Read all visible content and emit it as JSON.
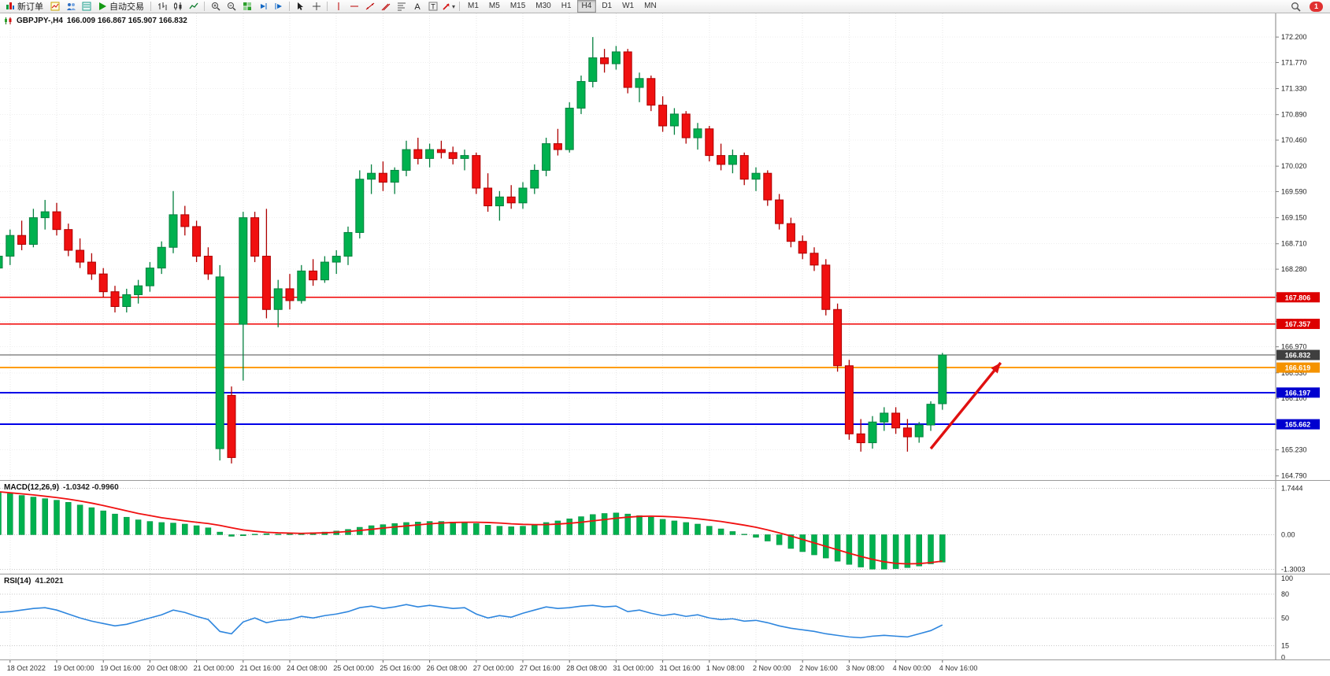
{
  "toolbar": {
    "new_order_label": "新订单",
    "autotrading_label": "自动交易",
    "timeframes": [
      "M1",
      "M5",
      "M15",
      "M30",
      "H1",
      "H4",
      "D1",
      "W1",
      "MN"
    ],
    "selected_timeframe": "H4",
    "notification_count": "1"
  },
  "chart_header": {
    "symbol_timeframe": "GBPJPY-,H4",
    "ohlc": "166.009 166.867 165.907 166.832"
  },
  "hlines": [
    {
      "label": "167.806",
      "price": 167.806,
      "color": "#f00000",
      "label_bg": "#dd0000",
      "width": 1.4
    },
    {
      "label": "167.357",
      "price": 167.357,
      "color": "#f00000",
      "label_bg": "#dd0000",
      "width": 1.4
    },
    {
      "label": "166.832",
      "price": 166.832,
      "color": "#4d4d4d",
      "label_bg": "#3f3f3f",
      "width": 1.2
    },
    {
      "label": "166.619",
      "price": 166.619,
      "color": "#ff9c00",
      "label_bg": "#f59300",
      "width": 2
    },
    {
      "label": "166.197",
      "price": 166.197,
      "color": "#0000e8",
      "label_bg": "#0000cf",
      "width": 2
    },
    {
      "label": "165.662",
      "price": 165.662,
      "color": "#0000e8",
      "label_bg": "#0000cf",
      "width": 2
    }
  ],
  "arrow": {
    "from_index": 80.0,
    "from_price": 165.25,
    "to_index": 86.0,
    "to_price": 166.7,
    "color": "#e01010"
  },
  "time_axis": {
    "labels": [
      "18 Oct 2022",
      "19 Oct 00:00",
      "19 Oct 16:00",
      "20 Oct 08:00",
      "21 Oct 00:00",
      "21 Oct 16:00",
      "24 Oct 08:00",
      "25 Oct 00:00",
      "25 Oct 16:00",
      "26 Oct 08:00",
      "27 Oct 00:00",
      "27 Oct 16:00",
      "28 Oct 08:00",
      "31 Oct 00:00",
      "31 Oct 16:00",
      "1 Nov 08:00",
      "2 Nov 00:00",
      "2 Nov 16:00",
      "3 Nov 08:00",
      "4 Nov 00:00",
      "4 Nov 16:00"
    ],
    "candles_per_label": 4,
    "first_label_candle_index": 1
  },
  "chart_data": [
    {
      "type": "candlestick",
      "symbol": "GBPJPY-",
      "timeframe": "H4",
      "ohlc_display": {
        "open": "166.009",
        "high": "166.867",
        "low": "165.907",
        "close": "166.832"
      },
      "ylim": [
        164.72,
        172.6
      ],
      "yticks": [
        172.2,
        171.77,
        171.33,
        170.89,
        170.46,
        170.02,
        169.59,
        169.15,
        168.71,
        168.28,
        167.84,
        167.4,
        166.97,
        166.53,
        166.1,
        165.66,
        165.23,
        164.79
      ],
      "up_color": "#00b14e",
      "up_border": "#05803f",
      "down_color": "#f01010",
      "down_border": "#ae0000",
      "candles": [
        [
          168.3,
          168.75,
          168.15,
          168.5
        ],
        [
          168.5,
          168.95,
          168.35,
          168.85
        ],
        [
          168.85,
          169.1,
          168.6,
          168.7
        ],
        [
          168.7,
          169.3,
          168.65,
          169.15
        ],
        [
          169.15,
          169.45,
          168.95,
          169.25
        ],
        [
          169.25,
          169.4,
          168.85,
          168.95
        ],
        [
          168.95,
          169.05,
          168.5,
          168.6
        ],
        [
          168.6,
          168.8,
          168.3,
          168.4
        ],
        [
          168.4,
          168.55,
          168.1,
          168.2
        ],
        [
          168.2,
          168.3,
          167.8,
          167.9
        ],
        [
          167.9,
          168.0,
          167.55,
          167.65
        ],
        [
          167.65,
          167.95,
          167.55,
          167.85
        ],
        [
          167.85,
          168.1,
          167.7,
          168.0
        ],
        [
          168.0,
          168.4,
          167.9,
          168.3
        ],
        [
          168.3,
          168.75,
          168.2,
          168.65
        ],
        [
          168.65,
          169.6,
          168.55,
          169.2
        ],
        [
          169.2,
          169.35,
          168.85,
          169.0
        ],
        [
          169.0,
          169.1,
          168.4,
          168.5
        ],
        [
          168.5,
          168.65,
          168.1,
          168.2
        ],
        [
          165.25,
          168.35,
          165.05,
          168.15
        ],
        [
          166.15,
          166.3,
          165.0,
          165.1
        ],
        [
          167.35,
          169.25,
          166.4,
          169.15
        ],
        [
          169.15,
          169.25,
          168.4,
          168.5
        ],
        [
          168.5,
          169.3,
          167.45,
          167.6
        ],
        [
          167.6,
          168.1,
          167.3,
          167.95
        ],
        [
          167.95,
          168.2,
          167.6,
          167.75
        ],
        [
          167.75,
          168.35,
          167.7,
          168.25
        ],
        [
          168.25,
          168.45,
          168.0,
          168.1
        ],
        [
          168.1,
          168.5,
          168.05,
          168.4
        ],
        [
          168.4,
          168.6,
          168.2,
          168.5
        ],
        [
          168.5,
          169.0,
          168.35,
          168.9
        ],
        [
          168.9,
          169.95,
          168.8,
          169.8
        ],
        [
          169.8,
          170.05,
          169.55,
          169.9
        ],
        [
          169.9,
          170.1,
          169.6,
          169.75
        ],
        [
          169.75,
          170.0,
          169.55,
          169.95
        ],
        [
          169.95,
          170.45,
          169.85,
          170.3
        ],
        [
          170.3,
          170.5,
          170.05,
          170.15
        ],
        [
          170.15,
          170.4,
          170.0,
          170.3
        ],
        [
          170.3,
          170.45,
          170.15,
          170.25
        ],
        [
          170.25,
          170.35,
          170.05,
          170.15
        ],
        [
          170.15,
          170.3,
          169.95,
          170.2
        ],
        [
          170.2,
          170.25,
          169.55,
          169.65
        ],
        [
          169.65,
          169.9,
          169.25,
          169.35
        ],
        [
          169.35,
          169.6,
          169.1,
          169.5
        ],
        [
          169.5,
          169.7,
          169.3,
          169.4
        ],
        [
          169.4,
          169.75,
          169.3,
          169.65
        ],
        [
          169.65,
          170.05,
          169.55,
          169.95
        ],
        [
          169.95,
          170.5,
          169.85,
          170.4
        ],
        [
          170.4,
          170.65,
          170.2,
          170.3
        ],
        [
          170.3,
          171.1,
          170.25,
          171.0
        ],
        [
          171.0,
          171.55,
          170.9,
          171.45
        ],
        [
          171.45,
          172.2,
          171.35,
          171.85
        ],
        [
          171.85,
          172.0,
          171.6,
          171.75
        ],
        [
          171.75,
          172.05,
          171.65,
          171.95
        ],
        [
          171.95,
          172.0,
          171.25,
          171.35
        ],
        [
          171.35,
          171.6,
          171.1,
          171.5
        ],
        [
          171.5,
          171.55,
          170.95,
          171.05
        ],
        [
          171.05,
          171.2,
          170.6,
          170.7
        ],
        [
          170.7,
          171.0,
          170.55,
          170.9
        ],
        [
          170.9,
          170.95,
          170.4,
          170.5
        ],
        [
          170.5,
          170.75,
          170.3,
          170.65
        ],
        [
          170.65,
          170.7,
          170.1,
          170.2
        ],
        [
          170.2,
          170.4,
          169.95,
          170.05
        ],
        [
          170.05,
          170.3,
          169.9,
          170.2
        ],
        [
          170.2,
          170.25,
          169.7,
          169.8
        ],
        [
          169.8,
          170.0,
          169.6,
          169.9
        ],
        [
          169.9,
          169.95,
          169.35,
          169.45
        ],
        [
          169.45,
          169.55,
          168.95,
          169.05
        ],
        [
          169.05,
          169.15,
          168.65,
          168.75
        ],
        [
          168.75,
          168.85,
          168.45,
          168.55
        ],
        [
          168.55,
          168.65,
          168.25,
          168.35
        ],
        [
          168.35,
          168.45,
          167.5,
          167.6
        ],
        [
          167.6,
          167.7,
          166.55,
          166.65
        ],
        [
          166.65,
          166.75,
          165.4,
          165.5
        ],
        [
          165.5,
          165.75,
          165.2,
          165.35
        ],
        [
          165.35,
          165.8,
          165.25,
          165.7
        ],
        [
          165.7,
          165.95,
          165.55,
          165.85
        ],
        [
          165.85,
          165.95,
          165.5,
          165.6
        ],
        [
          165.6,
          165.75,
          165.2,
          165.45
        ],
        [
          165.45,
          165.7,
          165.35,
          165.65
        ],
        [
          165.65,
          166.05,
          165.55,
          166.0
        ],
        [
          166.009,
          166.867,
          165.907,
          166.832
        ]
      ]
    },
    {
      "type": "bar",
      "subtype": "macd",
      "title": "MACD(12,26,9)",
      "values_display": "-1.0342 -0.9960",
      "ylim": [
        -1.47,
        2.03
      ],
      "yticks": [
        1.7444,
        0,
        -1.3003
      ],
      "ytick_labels": [
        "1.7444",
        "0.00",
        "-1.3003"
      ],
      "histogram_color": "#00b14e",
      "signal_color": "#f01010",
      "histogram": [
        1.6,
        1.55,
        1.48,
        1.42,
        1.36,
        1.3,
        1.22,
        1.12,
        1.02,
        0.9,
        0.78,
        0.66,
        0.56,
        0.5,
        0.46,
        0.44,
        0.4,
        0.34,
        0.26,
        0.1,
        -0.06,
        -0.04,
        0.02,
        0.04,
        0.02,
        0.04,
        0.06,
        0.08,
        0.1,
        0.14,
        0.2,
        0.28,
        0.34,
        0.38,
        0.42,
        0.46,
        0.48,
        0.5,
        0.5,
        0.48,
        0.46,
        0.42,
        0.36,
        0.32,
        0.3,
        0.32,
        0.38,
        0.46,
        0.52,
        0.6,
        0.68,
        0.76,
        0.8,
        0.82,
        0.78,
        0.72,
        0.66,
        0.58,
        0.52,
        0.46,
        0.4,
        0.32,
        0.22,
        0.12,
        0.02,
        -0.1,
        -0.24,
        -0.38,
        -0.52,
        -0.64,
        -0.76,
        -0.88,
        -1.0,
        -1.12,
        -1.22,
        -1.3,
        -1.3,
        -1.28,
        -1.24,
        -1.18,
        -1.1,
        -1.0342
      ],
      "signal": [
        1.62,
        1.58,
        1.54,
        1.5,
        1.45,
        1.4,
        1.34,
        1.27,
        1.19,
        1.1,
        1.0,
        0.9,
        0.8,
        0.72,
        0.64,
        0.58,
        0.52,
        0.47,
        0.42,
        0.35,
        0.26,
        0.18,
        0.13,
        0.09,
        0.07,
        0.06,
        0.05,
        0.06,
        0.07,
        0.09,
        0.12,
        0.16,
        0.2,
        0.25,
        0.29,
        0.33,
        0.37,
        0.41,
        0.44,
        0.46,
        0.47,
        0.47,
        0.46,
        0.44,
        0.41,
        0.39,
        0.38,
        0.38,
        0.4,
        0.43,
        0.47,
        0.52,
        0.57,
        0.62,
        0.66,
        0.69,
        0.7,
        0.69,
        0.67,
        0.64,
        0.6,
        0.55,
        0.5,
        0.43,
        0.36,
        0.28,
        0.18,
        0.07,
        -0.05,
        -0.18,
        -0.31,
        -0.44,
        -0.57,
        -0.7,
        -0.82,
        -0.93,
        -1.02,
        -1.08,
        -1.1,
        -1.09,
        -1.05,
        -0.996
      ]
    },
    {
      "type": "line",
      "subtype": "rsi",
      "title": "RSI(14)",
      "value_display": "41.2021",
      "ylim": [
        -2.5,
        105
      ],
      "yticks": [
        100,
        80,
        50,
        15,
        0
      ],
      "levels": [
        80,
        50,
        15
      ],
      "line_color": "#2e86de",
      "values": [
        57,
        58,
        60,
        62,
        63,
        60,
        55,
        50,
        46,
        43,
        40,
        42,
        46,
        50,
        54,
        60,
        57,
        52,
        48,
        33,
        30,
        45,
        50,
        44,
        47,
        48,
        52,
        50,
        53,
        55,
        58,
        63,
        65,
        62,
        64,
        67,
        64,
        66,
        64,
        62,
        63,
        55,
        50,
        53,
        51,
        56,
        60,
        64,
        62,
        63,
        65,
        66,
        64,
        65,
        58,
        60,
        56,
        53,
        55,
        52,
        54,
        50,
        48,
        49,
        46,
        47,
        44,
        40,
        37,
        35,
        33,
        30,
        28,
        26,
        25,
        27,
        28,
        27,
        26,
        30,
        34,
        41.2021
      ]
    }
  ]
}
